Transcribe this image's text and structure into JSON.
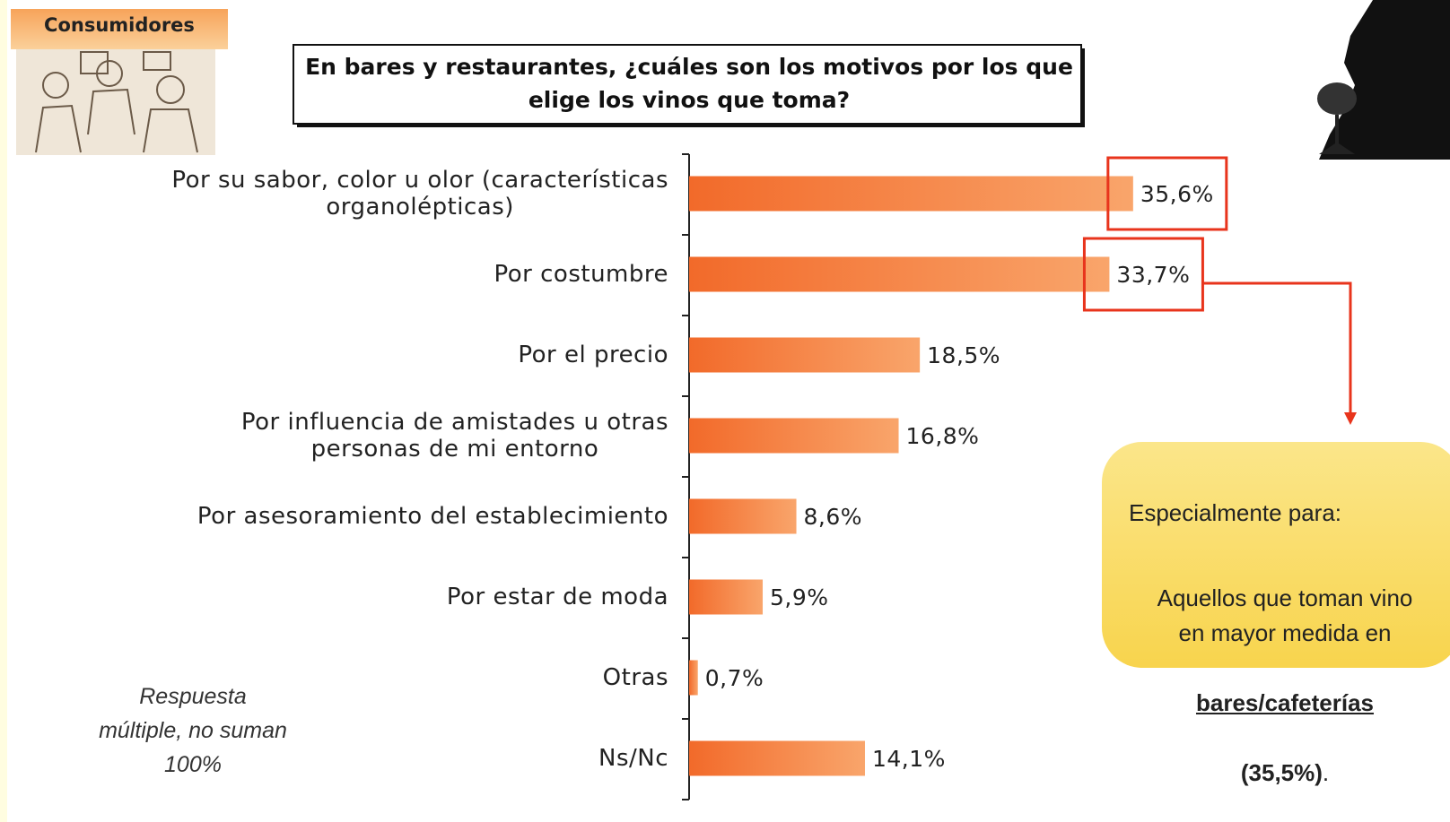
{
  "header": {
    "badge": "Consumidores"
  },
  "chart_data": {
    "type": "bar",
    "orientation": "horizontal",
    "title": "En bares y restaurantes, ¿cuáles son los motivos por los que\nelige los vinos que toma?",
    "categories": [
      "Por su sabor, color u olor (características\norganolépticas)",
      "Por costumbre",
      "Por el precio",
      "Por influencia de amistades u otras\npersonas de mi entorno",
      "Por asesoramiento del establecimiento",
      "Por estar de moda",
      "Otras",
      "Ns/Nc"
    ],
    "values": [
      35.6,
      33.7,
      18.5,
      16.8,
      8.6,
      5.9,
      0.7,
      14.1
    ],
    "value_labels": [
      "35,6%",
      "33,7%",
      "18,5%",
      "16,8%",
      "8,6%",
      "5,9%",
      "0,7%",
      "14,1%"
    ],
    "color": "#f47a3c",
    "xlim": [
      0,
      40
    ],
    "highlighted": [
      0,
      1
    ]
  },
  "note": "Respuesta\nmúltiple, no suman\n100%",
  "callout": {
    "heading": "Especialmente para:",
    "text": "Aquellos que toman vino\nen mayor medida en",
    "emphasis": "bares/cafeterías",
    "figure": "(35,5%)",
    "end": "."
  }
}
